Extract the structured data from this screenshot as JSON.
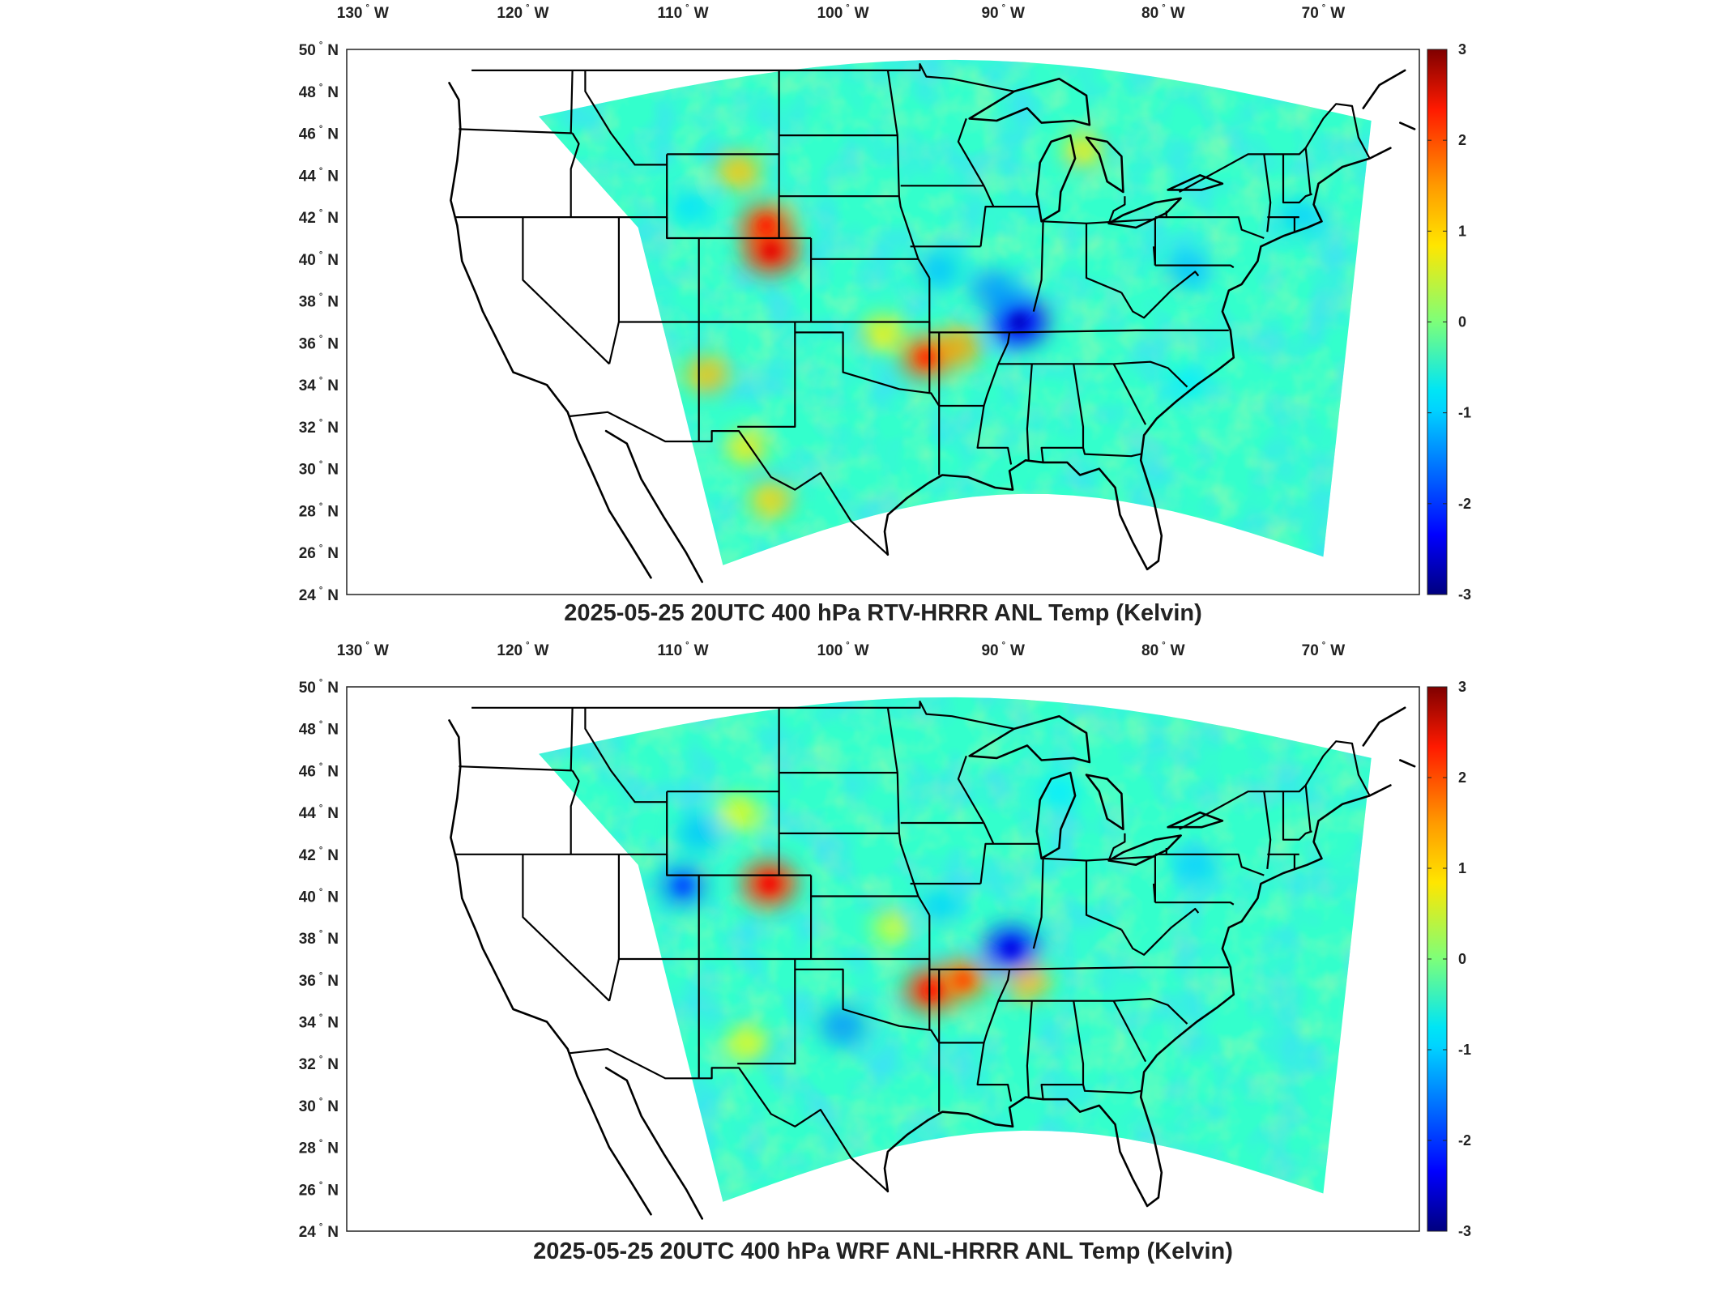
{
  "panels": [
    {
      "id": "rtv",
      "title": "2025-05-25 20UTC 400 hPa RTV-HRRR ANL Temp (Kelvin)",
      "hotspots": [
        {
          "lon": -104.5,
          "lat": 40.4,
          "value": 2.4
        },
        {
          "lon": -104.8,
          "lat": 41.6,
          "value": 2.1
        },
        {
          "lon": -106.5,
          "lat": 44.2,
          "value": 1.3
        },
        {
          "lon": -94.8,
          "lat": 35.3,
          "value": 2.0
        },
        {
          "lon": -92.8,
          "lat": 35.8,
          "value": 1.5
        },
        {
          "lon": -97.5,
          "lat": 36.5,
          "value": 1.0
        },
        {
          "lon": -108.5,
          "lat": 34.5,
          "value": 1.3
        },
        {
          "lon": -104.5,
          "lat": 28.5,
          "value": 1.2
        },
        {
          "lon": -106.0,
          "lat": 31.0,
          "value": 1.0
        },
        {
          "lon": -85.0,
          "lat": 45.2,
          "value": 1.0
        },
        {
          "lon": -89.0,
          "lat": 37.0,
          "value": -2.6
        },
        {
          "lon": -90.5,
          "lat": 38.5,
          "value": -1.6
        },
        {
          "lon": -94.0,
          "lat": 39.5,
          "value": -1.3
        },
        {
          "lon": -78.5,
          "lat": 39.5,
          "value": -1.3
        },
        {
          "lon": -71.5,
          "lat": 42.0,
          "value": -1.2
        },
        {
          "lon": -109.5,
          "lat": 42.5,
          "value": -1.1
        },
        {
          "lon": -78.5,
          "lat": 34.0,
          "value": -1.0
        }
      ]
    },
    {
      "id": "wrf",
      "title": "2025-05-25 20UTC 400 hPa WRF ANL-HRRR ANL Temp (Kelvin)",
      "hotspots": [
        {
          "lon": -104.6,
          "lat": 40.6,
          "value": 2.3
        },
        {
          "lon": -94.5,
          "lat": 35.5,
          "value": 2.2
        },
        {
          "lon": -92.5,
          "lat": 36.0,
          "value": 1.8
        },
        {
          "lon": -88.5,
          "lat": 36.0,
          "value": 1.4
        },
        {
          "lon": -106.5,
          "lat": 44.0,
          "value": 0.9
        },
        {
          "lon": -106.0,
          "lat": 33.0,
          "value": 0.9
        },
        {
          "lon": -97.0,
          "lat": 38.5,
          "value": 0.7
        },
        {
          "lon": -89.5,
          "lat": 37.5,
          "value": -2.4
        },
        {
          "lon": -110.0,
          "lat": 40.5,
          "value": -1.8
        },
        {
          "lon": -109.0,
          "lat": 43.0,
          "value": -1.3
        },
        {
          "lon": -100.0,
          "lat": 33.8,
          "value": -1.6
        },
        {
          "lon": -94.0,
          "lat": 39.5,
          "value": -1.2
        },
        {
          "lon": -78.0,
          "lat": 41.5,
          "value": -1.2
        },
        {
          "lon": -86.5,
          "lat": 45.0,
          "value": -1.0
        }
      ]
    }
  ],
  "axes": {
    "lon_labels": [
      "130",
      "120",
      "110",
      "100",
      "90",
      "80",
      "70"
    ],
    "lon_suffix": "W",
    "lat_labels": [
      "24",
      "26",
      "28",
      "30",
      "32",
      "34",
      "36",
      "38",
      "40",
      "42",
      "44",
      "46",
      "48",
      "50"
    ],
    "lat_suffix": "N",
    "degree_symbol": "°",
    "lon_range": [
      -131,
      -64
    ],
    "lat_range": [
      24,
      50
    ]
  },
  "colorbar": {
    "colormap": "jet",
    "range": [
      -3,
      3
    ],
    "tick_labels": [
      "3",
      "2",
      "1",
      "0",
      "-1",
      "-2",
      "-3"
    ]
  }
}
